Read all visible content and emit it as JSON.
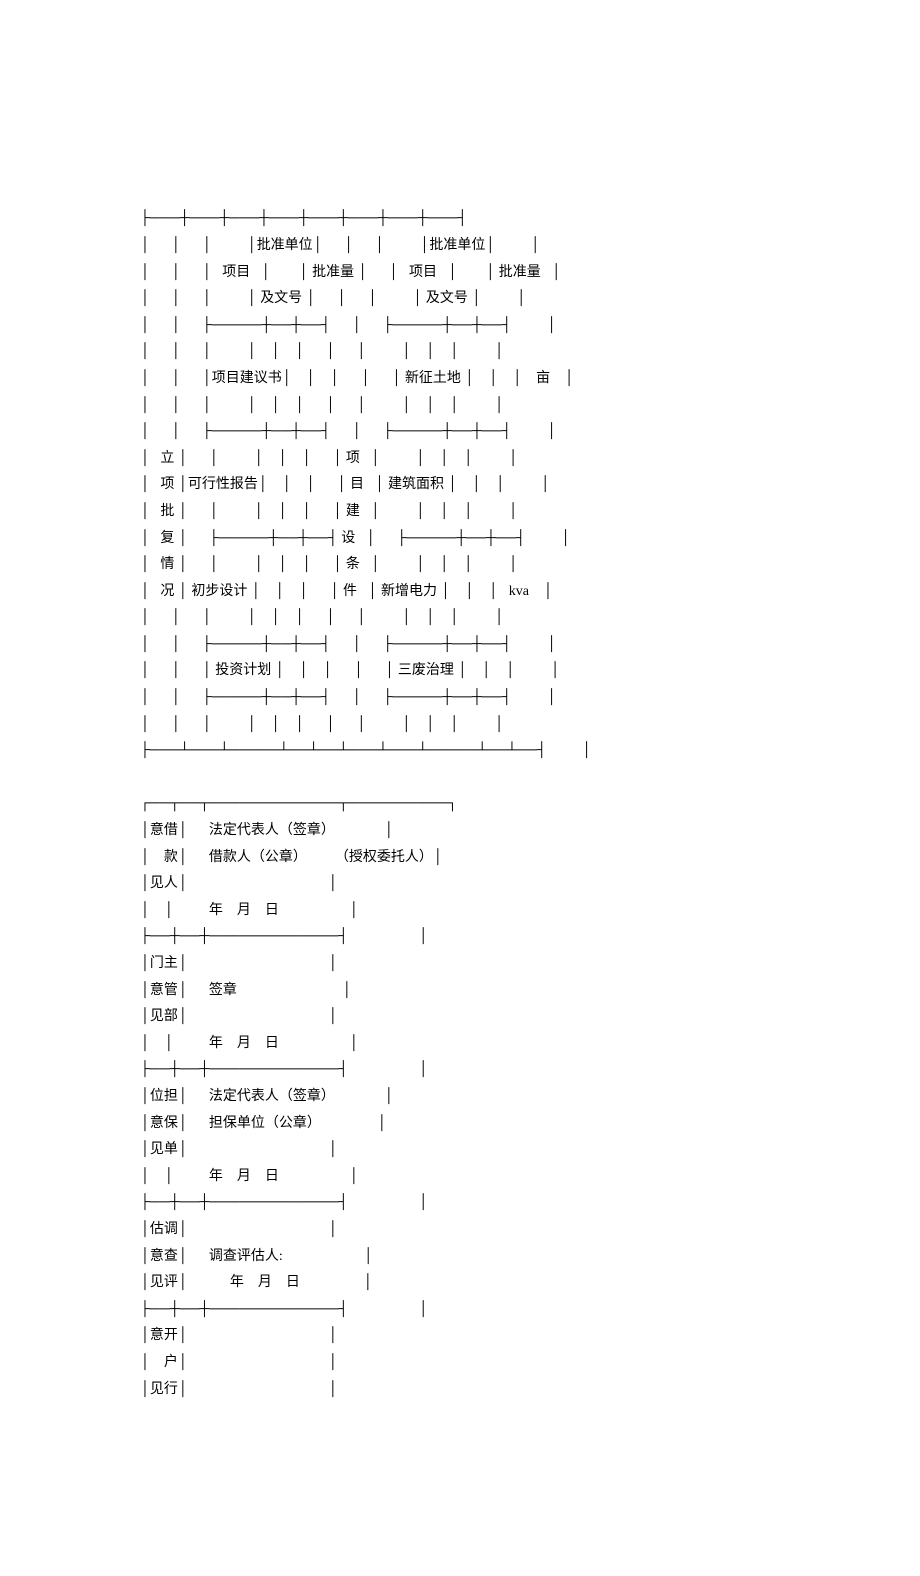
{
  "table1": {
    "leftHeader": "立\n项\n批\n复\n情\n况",
    "midHeader": "项\n目\n建\n设\n条\n件",
    "header_left_col1": "项目",
    "header_left_col2_line1": "批准单位",
    "header_left_col2_line2": "及文号",
    "header_left_col3": "批准量",
    "header_right_col1": "项目",
    "header_right_col2_line1": "批准单位",
    "header_right_col2_line2": "及文号",
    "header_right_col3": "批准量",
    "row1_left": "项目建议书",
    "row1_right": "新征土地",
    "row1_right_unit": "亩",
    "row2_left": "可行性报告",
    "row2_right": "建筑面积",
    "row3_left": "初步设计",
    "row3_right": "新增电力",
    "row3_right_unit": "kva",
    "row4_left": "投资计划",
    "row4_right": "三废治理"
  },
  "table2": {
    "sec1_label_c1": "意借",
    "sec1_label_c2": "　款",
    "sec1_label_c3": "见人",
    "sec1_line1": "法定代表人（签章）",
    "sec1_line2a": "借款人（公章）",
    "sec1_line2b": "（授权委托人）",
    "sec1_date": "年　月　日",
    "sec2_label_c1": "门主",
    "sec2_label_c2": "意管",
    "sec2_label_c3": "见部",
    "sec2_line1": "签章",
    "sec2_date": "年　月　日",
    "sec3_label_c1": "位担",
    "sec3_label_c2": "意保",
    "sec3_label_c3": "见单",
    "sec3_line1": "法定代表人（签章）",
    "sec3_line2": "担保单位（公章）",
    "sec3_date": "年　月　日",
    "sec4_label_c1": "估调",
    "sec4_label_c2": "意查",
    "sec4_label_c3": "见评",
    "sec4_line1": "调查评估人:",
    "sec4_date": "年　月　日",
    "sec5_label_c1": "意开",
    "sec5_label_c2": "　户",
    "sec5_label_c3": "见行"
  },
  "style": {
    "font_family": "SimSun",
    "font_size_pt": 10.5,
    "text_color": "#000000",
    "background_color": "#ffffff"
  }
}
